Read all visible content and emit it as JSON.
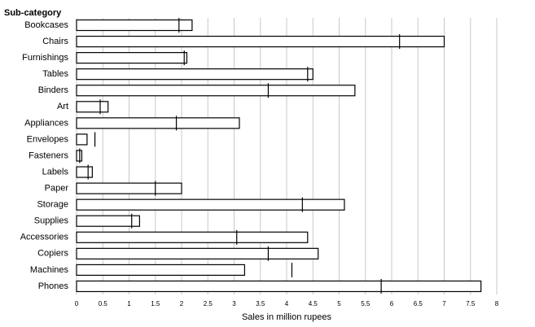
{
  "chart_data": {
    "type": "bullet",
    "y_axis_title": "Sub-category",
    "x_axis_title": "Sales in million rupees",
    "categories": [
      "Bookcases",
      "Chairs",
      "Furnishings",
      "Tables",
      "Binders",
      "Art",
      "Appliances",
      "Envelopes",
      "Fasteners",
      "Labels",
      "Paper",
      "Storage",
      "Supplies",
      "Accessories",
      "Copiers",
      "Machines",
      "Phones"
    ],
    "values": [
      2.2,
      7.0,
      2.1,
      4.5,
      5.3,
      0.6,
      3.1,
      0.2,
      0.1,
      0.3,
      2.0,
      5.1,
      1.2,
      4.4,
      4.6,
      3.2,
      7.7
    ],
    "targets": [
      1.95,
      6.15,
      2.05,
      4.4,
      3.65,
      0.45,
      1.9,
      0.35,
      0.06,
      0.22,
      1.5,
      4.3,
      1.05,
      3.05,
      3.65,
      4.1,
      5.8
    ],
    "color": "#ffffff",
    "xlim": [
      0,
      8
    ],
    "xticks": [
      0,
      0.5,
      1,
      1.5,
      2,
      2.5,
      3,
      3.5,
      4,
      4.5,
      5,
      5.5,
      6,
      6.5,
      7,
      7.5,
      8
    ],
    "grid": true
  }
}
